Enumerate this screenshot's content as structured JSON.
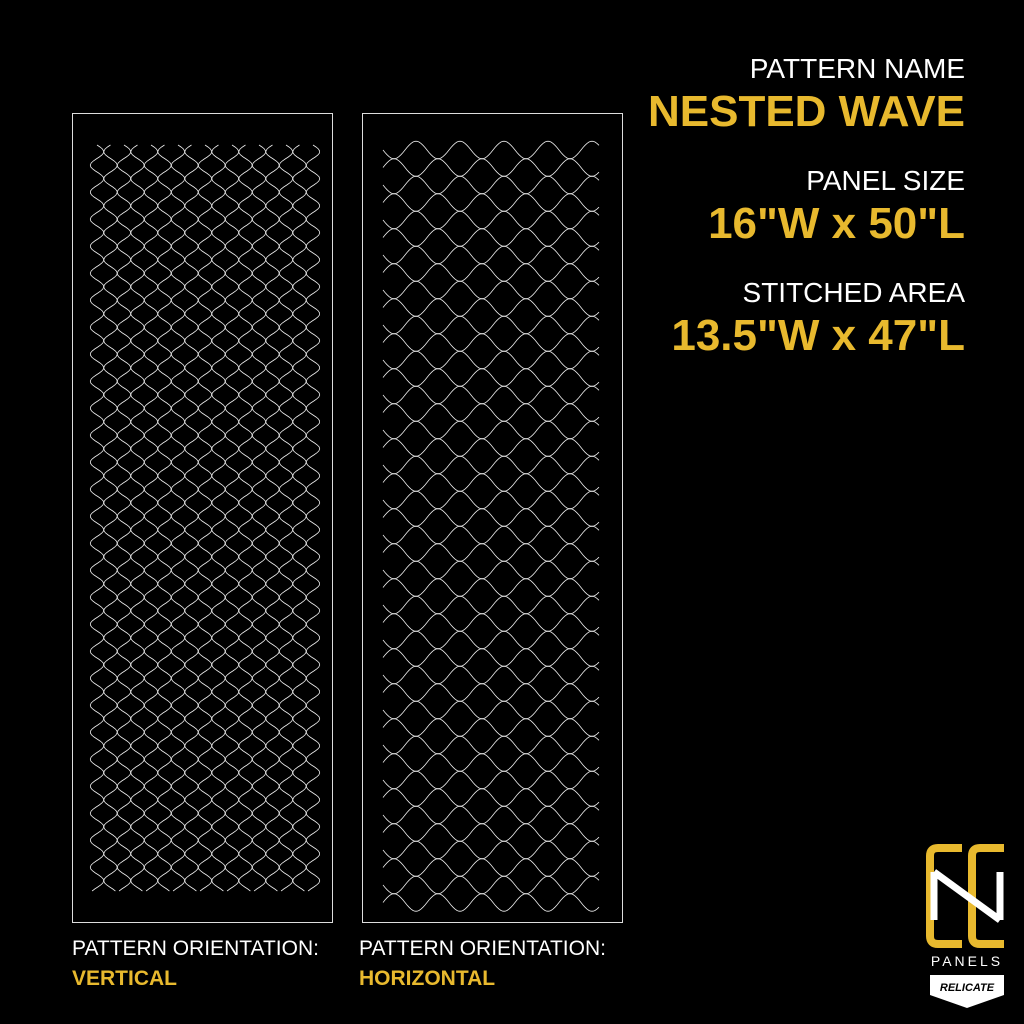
{
  "info": {
    "pattern_name_label": "PATTERN NAME",
    "pattern_name": "NESTED WAVE",
    "panel_size_label": "PANEL SIZE",
    "panel_size": "16\"W x 50\"L",
    "stitched_area_label": "STITCHED AREA",
    "stitched_area": "13.5\"W x 47\"L"
  },
  "panels": [
    {
      "orientation_label": "PATTERN ORIENTATION:",
      "orientation": "VERTICAL"
    },
    {
      "orientation_label": "PATTERN ORIENTATION:",
      "orientation": "HORIZONTAL"
    }
  ],
  "logo": {
    "subtitle": "PANELS",
    "badge": "RELICATE"
  }
}
